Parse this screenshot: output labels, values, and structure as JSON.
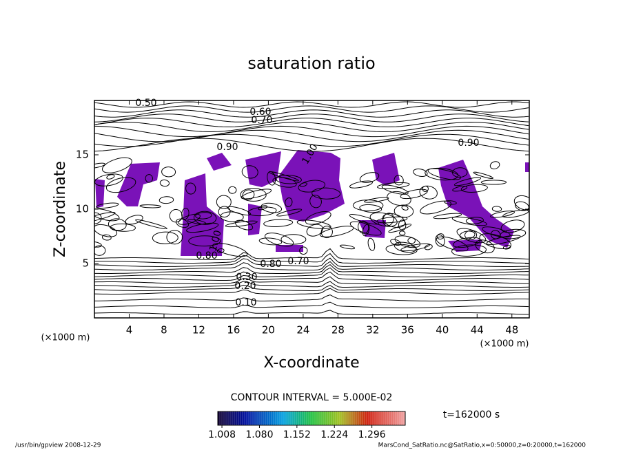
{
  "chart_data": {
    "type": "contour",
    "title": "saturation ratio",
    "x_label": "X-coordinate",
    "y_label": "Z-coordinate",
    "x_unit": "(×1000 m)",
    "y_unit": "(×1000 m)",
    "xlim": [
      0,
      50
    ],
    "xticks": [
      4,
      8,
      12,
      16,
      20,
      24,
      28,
      32,
      36,
      40,
      44,
      48
    ],
    "ylim": [
      0,
      20
    ],
    "yticks": [
      5,
      10,
      15
    ],
    "contour_labels": [
      "0.50",
      "0.60",
      "0.70",
      "0.90",
      "1.00",
      "0.90",
      "1.00",
      "0.80",
      "0.80",
      "0.70",
      "0.30",
      "0.20",
      "0.10"
    ],
    "contour_interval": "CONTOUR INTERVAL = 5.000E-02",
    "colorbar": {
      "lim": [
        1.0,
        1.36
      ],
      "ticks": [
        {
          "value": 1.008,
          "label": "1.008"
        },
        {
          "value": 1.08,
          "label": "1.080"
        },
        {
          "value": 1.152,
          "label": "1.152"
        },
        {
          "value": 1.224,
          "label": "1.224"
        },
        {
          "value": 1.296,
          "label": "1.296"
        }
      ]
    },
    "time_label": "t=162000 s",
    "footer_left": "/usr/bin/gpview  2008-12-29",
    "footer_right": "MarsCond_SatRatio.nc@SatRatio,x=0:50000,z=0:20000,t=162000"
  }
}
